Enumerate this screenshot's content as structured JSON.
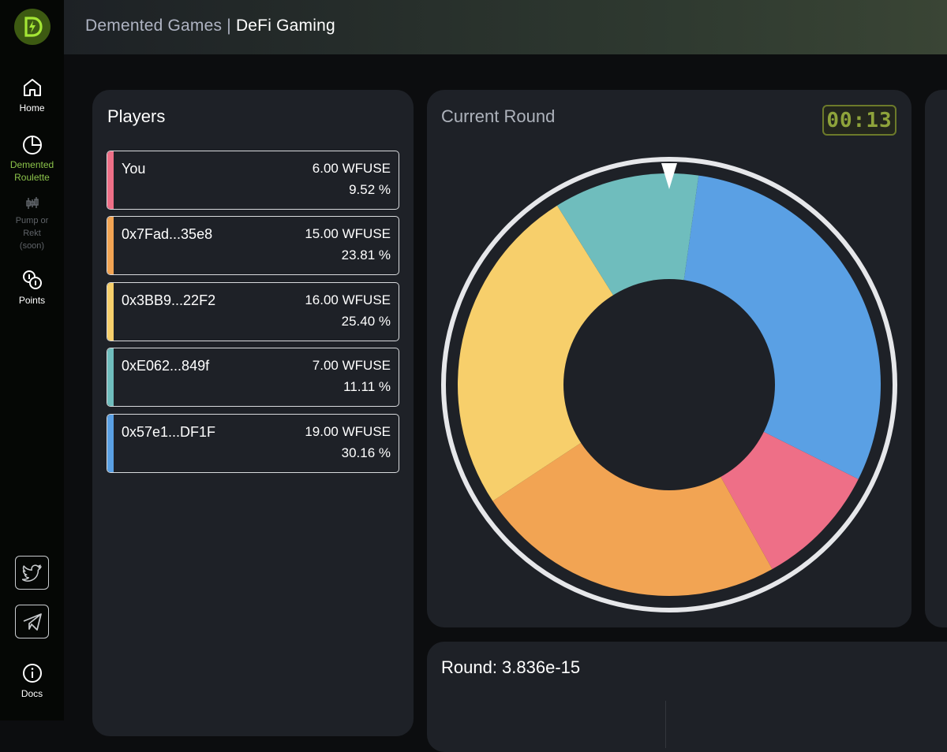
{
  "app": {
    "title_prefix": "Demented Games | ",
    "title_main": "DeFi Gaming"
  },
  "sidebar": {
    "home_label": "Home",
    "roulette_label_1": "Demented",
    "roulette_label_2": "Roulette",
    "pump_label_1": "Pump or",
    "pump_label_2": "Rekt",
    "pump_label_3": "(soon)",
    "points_label": "Points",
    "docs_label": "Docs"
  },
  "players": {
    "title": "Players",
    "items": [
      {
        "address": "You",
        "amount": "6.00 WFUSE",
        "percent": "9.52 %",
        "color": "#ee6f87"
      },
      {
        "address": "0x7Fad...35e8",
        "amount": "15.00 WFUSE",
        "percent": "23.81 %",
        "color": "#f2a453"
      },
      {
        "address": "0x3BB9...22F2",
        "amount": "16.00 WFUSE",
        "percent": "25.40 %",
        "color": "#f7cf6b"
      },
      {
        "address": "0xE062...849f",
        "amount": "7.00 WFUSE",
        "percent": "11.11 %",
        "color": "#6fbdbd"
      },
      {
        "address": "0x57e1...DF1F",
        "amount": "19.00 WFUSE",
        "percent": "30.16 %",
        "color": "#5aa0e4"
      }
    ]
  },
  "round": {
    "title": "Current Round",
    "timer": "00:13",
    "round_label": "Round: 3.836e-15"
  },
  "chart_data": {
    "type": "pie",
    "title": "Current Round",
    "start_angle_deg": 8,
    "slices": [
      {
        "label": "0x57e1...DF1F",
        "value": 30.16,
        "color": "#5aa0e4"
      },
      {
        "label": "You",
        "value": 9.52,
        "color": "#ee6f87"
      },
      {
        "label": "0x7Fad...35e8",
        "value": 23.81,
        "color": "#f2a453"
      },
      {
        "label": "0x3BB9...22F2",
        "value": 25.4,
        "color": "#f7cf6b"
      },
      {
        "label": "0xE062...849f",
        "value": 11.11,
        "color": "#6fbdbd"
      }
    ]
  }
}
